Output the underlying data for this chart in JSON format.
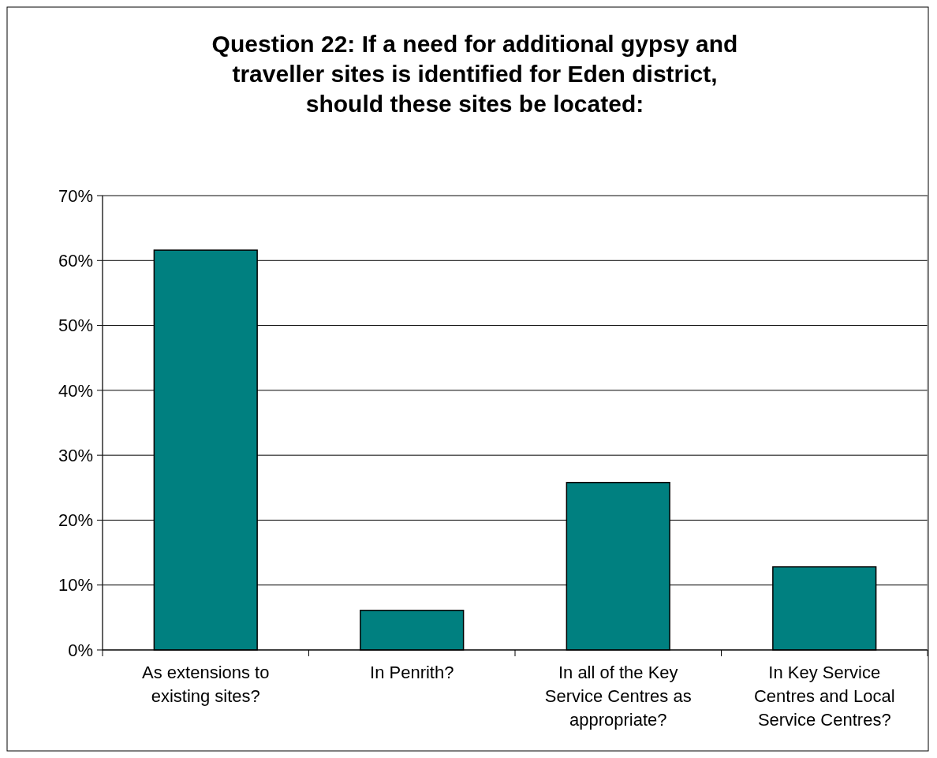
{
  "chart_data": {
    "type": "bar",
    "title": "Question 22: If a need for additional gypsy and traveller sites is identified for Eden district, should these sites be located:",
    "categories": [
      "As extensions to existing sites?",
      "In Penrith?",
      "In all of the Key Service Centres as appropriate?",
      "In Key Service Centres and Local Service Centres?"
    ],
    "values": [
      61.6,
      6.1,
      25.8,
      12.8
    ],
    "color": "#008080",
    "ylim": [
      0,
      70
    ],
    "yticks": [
      {
        "value": 0,
        "label": "0%"
      },
      {
        "value": 10,
        "label": "10%"
      },
      {
        "value": 20,
        "label": "20%"
      },
      {
        "value": 30,
        "label": "30%"
      },
      {
        "value": 40,
        "label": "40%"
      },
      {
        "value": 50,
        "label": "50%"
      },
      {
        "value": 60,
        "label": "60%"
      },
      {
        "value": 70,
        "label": "70%"
      }
    ],
    "grid": "y"
  }
}
